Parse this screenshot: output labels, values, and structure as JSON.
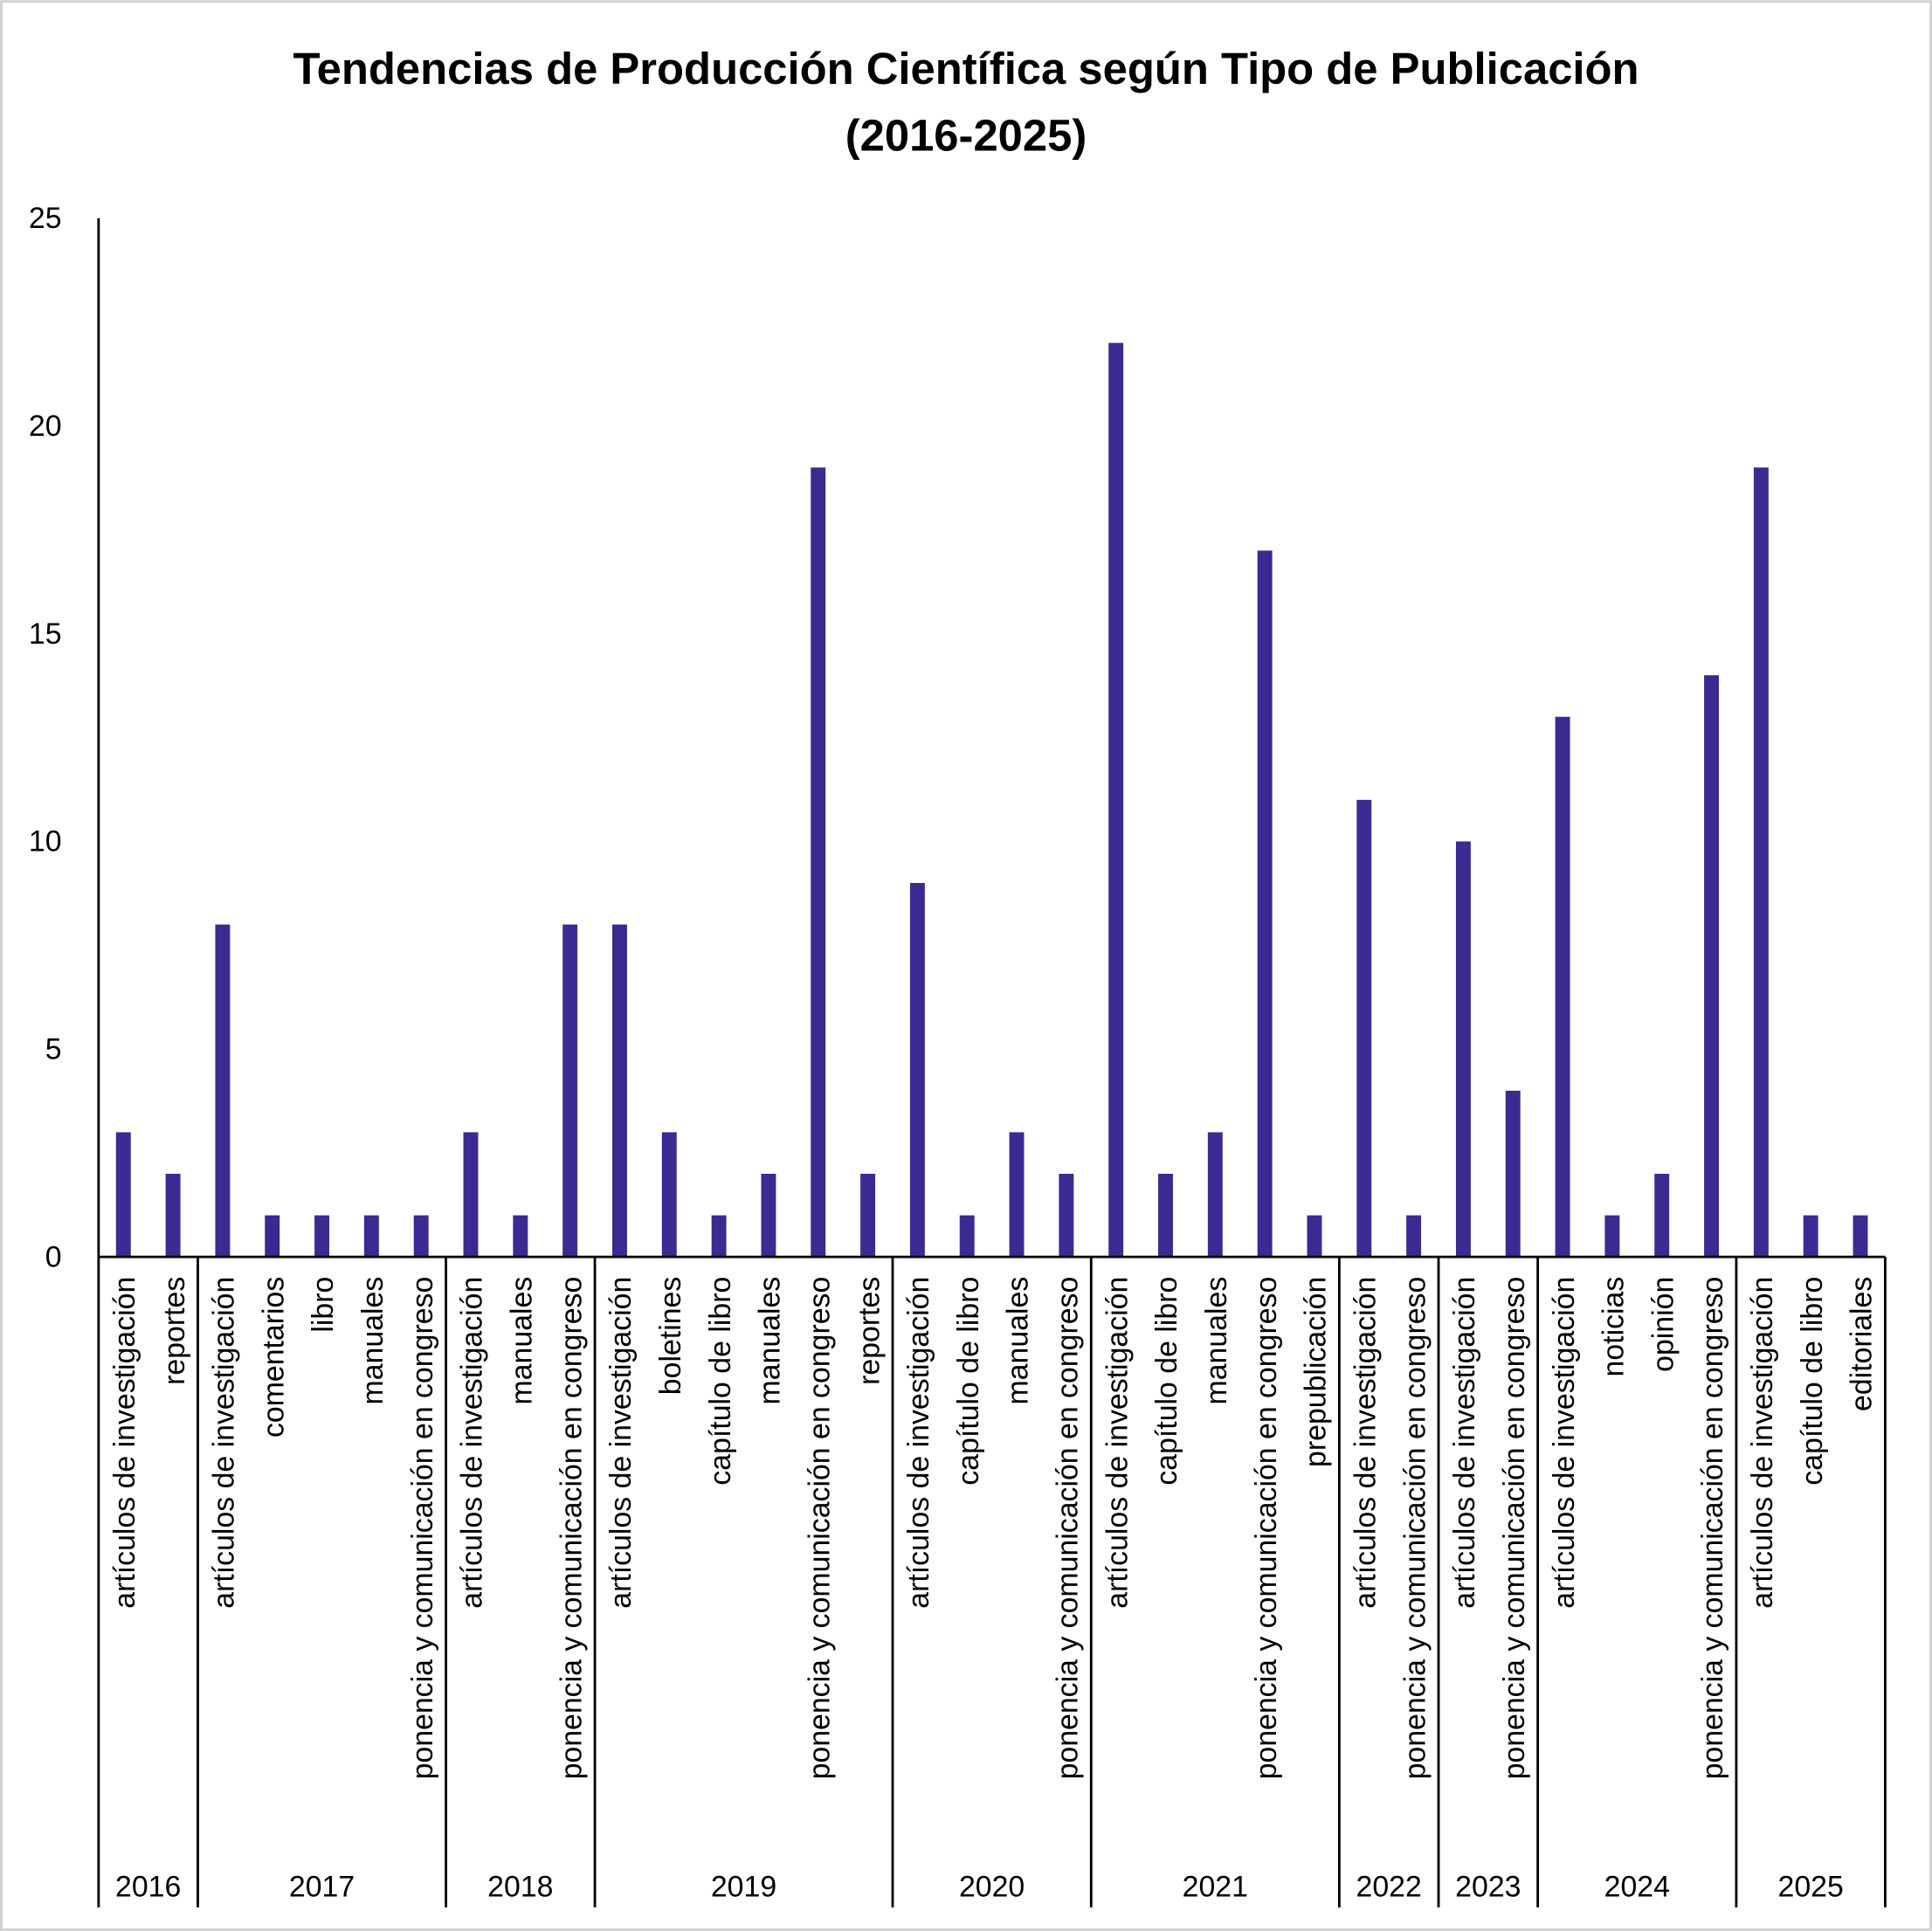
{
  "chart_data": {
    "type": "bar",
    "title": "Tendencias de Producción Científica según Tipo de Publicación",
    "subtitle": "(2016-2025)",
    "xlabel": "",
    "ylabel": "",
    "ylim": [
      0,
      25
    ],
    "yticks": [
      0,
      5,
      10,
      15,
      20,
      25
    ],
    "grid": false,
    "legend": "none",
    "bar_color": "#3B2A91",
    "groups": [
      {
        "year": "2016",
        "items": [
          {
            "label": "artículos de investigación",
            "value": 3
          },
          {
            "label": "reportes",
            "value": 2
          }
        ]
      },
      {
        "year": "2017",
        "items": [
          {
            "label": "artículos de investigación",
            "value": 8
          },
          {
            "label": "comentarios",
            "value": 1
          },
          {
            "label": "libro",
            "value": 1
          },
          {
            "label": "manuales",
            "value": 1
          },
          {
            "label": "ponencia y comunicación en congreso",
            "value": 1
          }
        ]
      },
      {
        "year": "2018",
        "items": [
          {
            "label": "artículos de investigación",
            "value": 3
          },
          {
            "label": "manuales",
            "value": 1
          },
          {
            "label": "ponencia y comunicación en congreso",
            "value": 8
          }
        ]
      },
      {
        "year": "2019",
        "items": [
          {
            "label": "artículos de investigación",
            "value": 8
          },
          {
            "label": "boletines",
            "value": 3
          },
          {
            "label": "capítulo de libro",
            "value": 1
          },
          {
            "label": "manuales",
            "value": 2
          },
          {
            "label": "ponencia y comunicación en congreso",
            "value": 19
          },
          {
            "label": "reportes",
            "value": 2
          }
        ]
      },
      {
        "year": "2020",
        "items": [
          {
            "label": "artículos de investigación",
            "value": 9
          },
          {
            "label": "capítulo de libro",
            "value": 1
          },
          {
            "label": "manuales",
            "value": 3
          },
          {
            "label": "ponencia y comunicación en congreso",
            "value": 2
          }
        ]
      },
      {
        "year": "2021",
        "items": [
          {
            "label": "artículos de investigación",
            "value": 22
          },
          {
            "label": "capítulo de libro",
            "value": 2
          },
          {
            "label": "manuales",
            "value": 3
          },
          {
            "label": "ponencia y comunicación en congreso",
            "value": 17
          },
          {
            "label": "prepublicación",
            "value": 1
          }
        ]
      },
      {
        "year": "2022",
        "items": [
          {
            "label": "artículos de investigación",
            "value": 11
          },
          {
            "label": "ponencia y comunicación en congreso",
            "value": 1
          }
        ]
      },
      {
        "year": "2023",
        "items": [
          {
            "label": "artículos de investigación",
            "value": 10
          },
          {
            "label": "ponencia y comunicación en congreso",
            "value": 4
          }
        ]
      },
      {
        "year": "2024",
        "items": [
          {
            "label": "artículos de investigación",
            "value": 13
          },
          {
            "label": "noticias",
            "value": 1
          },
          {
            "label": "opinión",
            "value": 2
          },
          {
            "label": "ponencia y comunicación en congreso",
            "value": 14
          }
        ]
      },
      {
        "year": "2025",
        "items": [
          {
            "label": "artículos de investigación",
            "value": 19
          },
          {
            "label": "capítulo de libro",
            "value": 1
          },
          {
            "label": "editoriales",
            "value": 1
          }
        ]
      }
    ]
  }
}
